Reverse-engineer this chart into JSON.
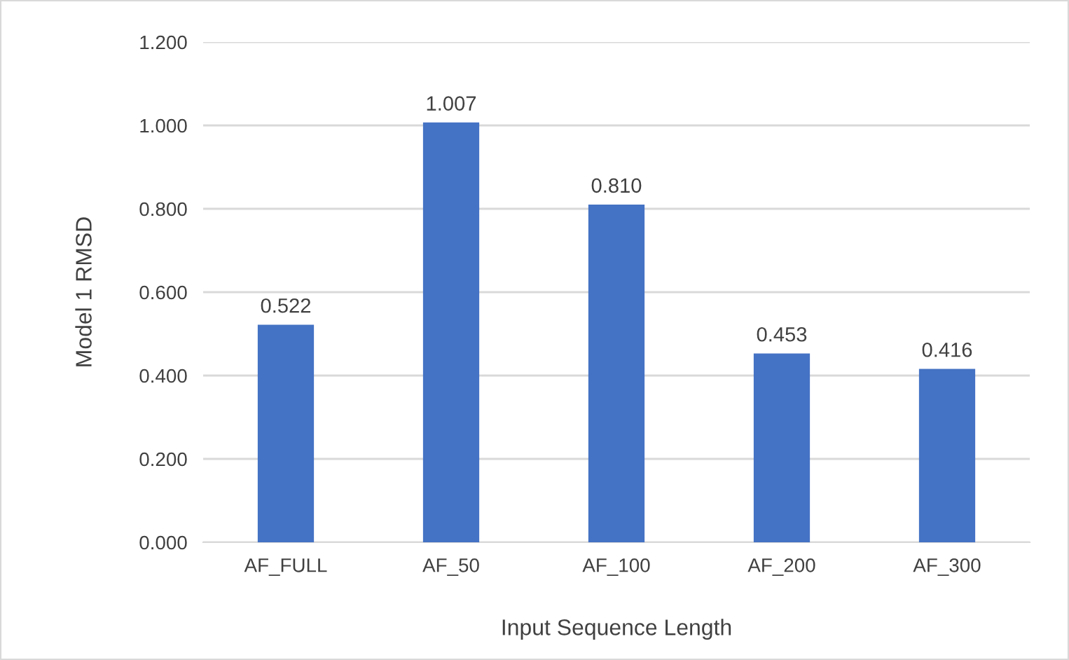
{
  "chart_data": {
    "type": "bar",
    "xlabel": "Input Sequence Length",
    "ylabel": "Model 1 RMSD",
    "categories": [
      "AF_FULL",
      "AF_50",
      "AF_100",
      "AF_200",
      "AF_300"
    ],
    "values": [
      0.522,
      1.007,
      0.81,
      0.453,
      0.416
    ],
    "value_labels": [
      "0.522",
      "1.007",
      "0.810",
      "0.453",
      "0.416"
    ],
    "color": "#4472c4",
    "ylim": [
      0,
      1.2
    ],
    "yticks": [
      {
        "value": 0,
        "label": "0.000"
      },
      {
        "value": 0.2,
        "label": "0.200"
      },
      {
        "value": 0.4,
        "label": "0.400"
      },
      {
        "value": 0.6,
        "label": "0.600"
      },
      {
        "value": 0.8,
        "label": "0.800"
      },
      {
        "value": 1.0,
        "label": "1.000"
      },
      {
        "value": 1.2,
        "label": "1.200"
      }
    ],
    "grid": "y"
  }
}
